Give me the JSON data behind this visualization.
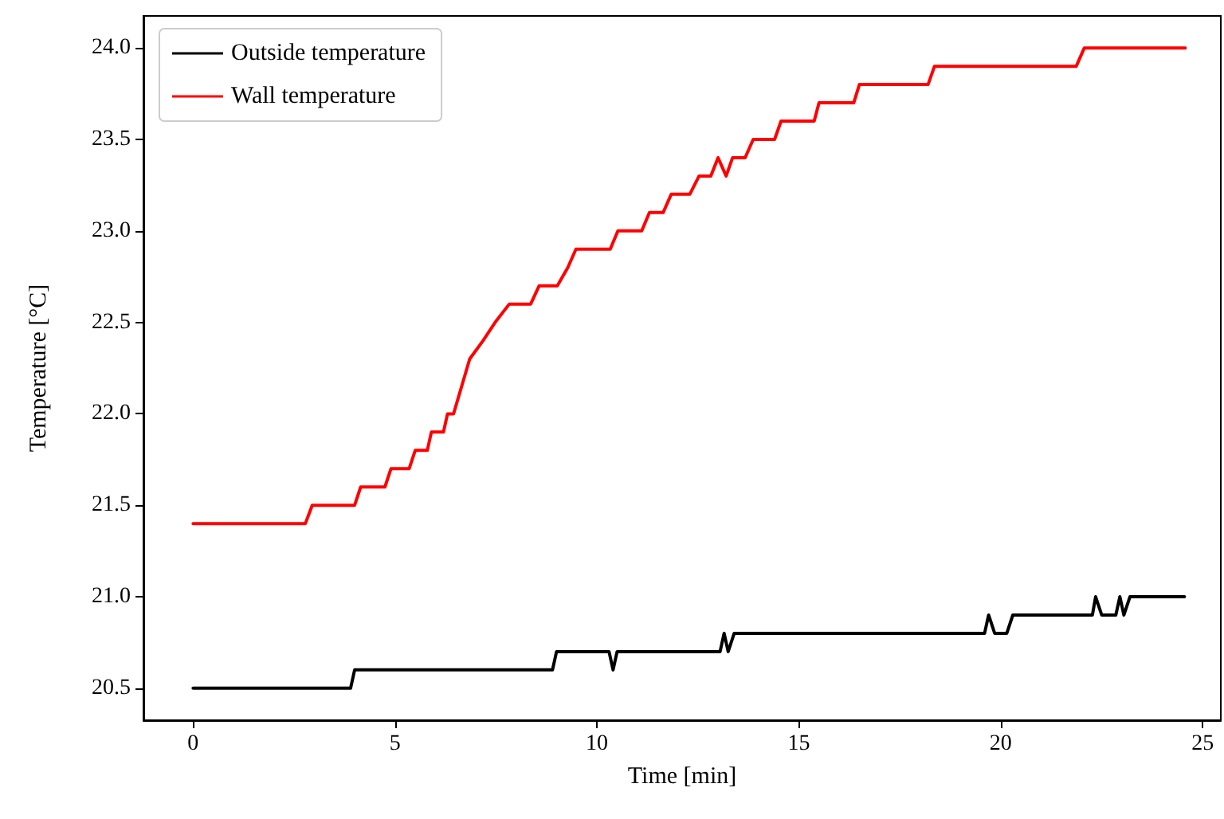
{
  "chart_data": {
    "type": "line",
    "xlabel": "Time [min]",
    "ylabel": "Temperature [°C]",
    "xlim": [
      -1.23,
      25.45
    ],
    "ylim": [
      20.325,
      24.175
    ],
    "xticks": [
      0,
      5,
      10,
      15,
      20,
      25
    ],
    "yticks": [
      {
        "value": 20.5,
        "label": "20.5"
      },
      {
        "value": 21,
        "label": "21.0"
      },
      {
        "value": 21.5,
        "label": "21.5"
      },
      {
        "value": 22,
        "label": "22.0"
      },
      {
        "value": 22.5,
        "label": "22.5"
      },
      {
        "value": 23,
        "label": "23.0"
      },
      {
        "value": 23.5,
        "label": "23.5"
      },
      {
        "value": 24,
        "label": "24.0"
      }
    ],
    "grid": false,
    "legend": "top left",
    "marker": "none",
    "line_style": "solid",
    "series": [
      {
        "name": "Outside temperature",
        "color": "#000000",
        "x": [
          0,
          3.9,
          4.0,
          8.9,
          9.0,
          10.3,
          10.4,
          10.5,
          13.05,
          13.15,
          13.25,
          13.4,
          19.6,
          19.7,
          19.85,
          20.15,
          20.3,
          22.27,
          22.35,
          22.5,
          22.85,
          22.95,
          23.05,
          23.2,
          24.55
        ],
        "values": [
          20.5,
          20.5,
          20.6,
          20.6,
          20.7,
          20.7,
          20.6,
          20.7,
          20.7,
          20.8,
          20.7,
          20.8,
          20.8,
          20.9,
          20.8,
          20.8,
          20.9,
          20.9,
          21.0,
          20.9,
          20.9,
          21.0,
          20.9,
          21.0,
          21.0
        ]
      },
      {
        "name": "Wall temperature",
        "color": "#ff0000",
        "x": [
          0,
          2.78,
          2.95,
          4.0,
          4.15,
          4.75,
          4.9,
          5.35,
          5.5,
          5.8,
          5.9,
          6.2,
          6.3,
          6.45,
          6.85,
          7.18,
          7.48,
          7.83,
          8.36,
          8.57,
          9.02,
          9.28,
          9.48,
          10.33,
          10.52,
          11.11,
          11.3,
          11.64,
          11.84,
          12.3,
          12.53,
          12.82,
          13.0,
          13.2,
          13.36,
          13.67,
          13.87,
          14.4,
          14.56,
          15.38,
          15.5,
          16.36,
          16.5,
          18.2,
          18.36,
          21.87,
          22.07,
          24.57
        ],
        "values": [
          21.4,
          21.4,
          21.5,
          21.5,
          21.6,
          21.6,
          21.7,
          21.7,
          21.8,
          21.8,
          21.9,
          21.9,
          22.0,
          22.0,
          22.3,
          22.4,
          22.5,
          22.6,
          22.6,
          22.7,
          22.7,
          22.8,
          22.9,
          22.9,
          23.0,
          23.0,
          23.1,
          23.1,
          23.2,
          23.2,
          23.3,
          23.3,
          23.4,
          23.3,
          23.4,
          23.4,
          23.5,
          23.5,
          23.6,
          23.6,
          23.7,
          23.7,
          23.8,
          23.8,
          23.9,
          23.9,
          24.0,
          24.0
        ]
      }
    ]
  }
}
